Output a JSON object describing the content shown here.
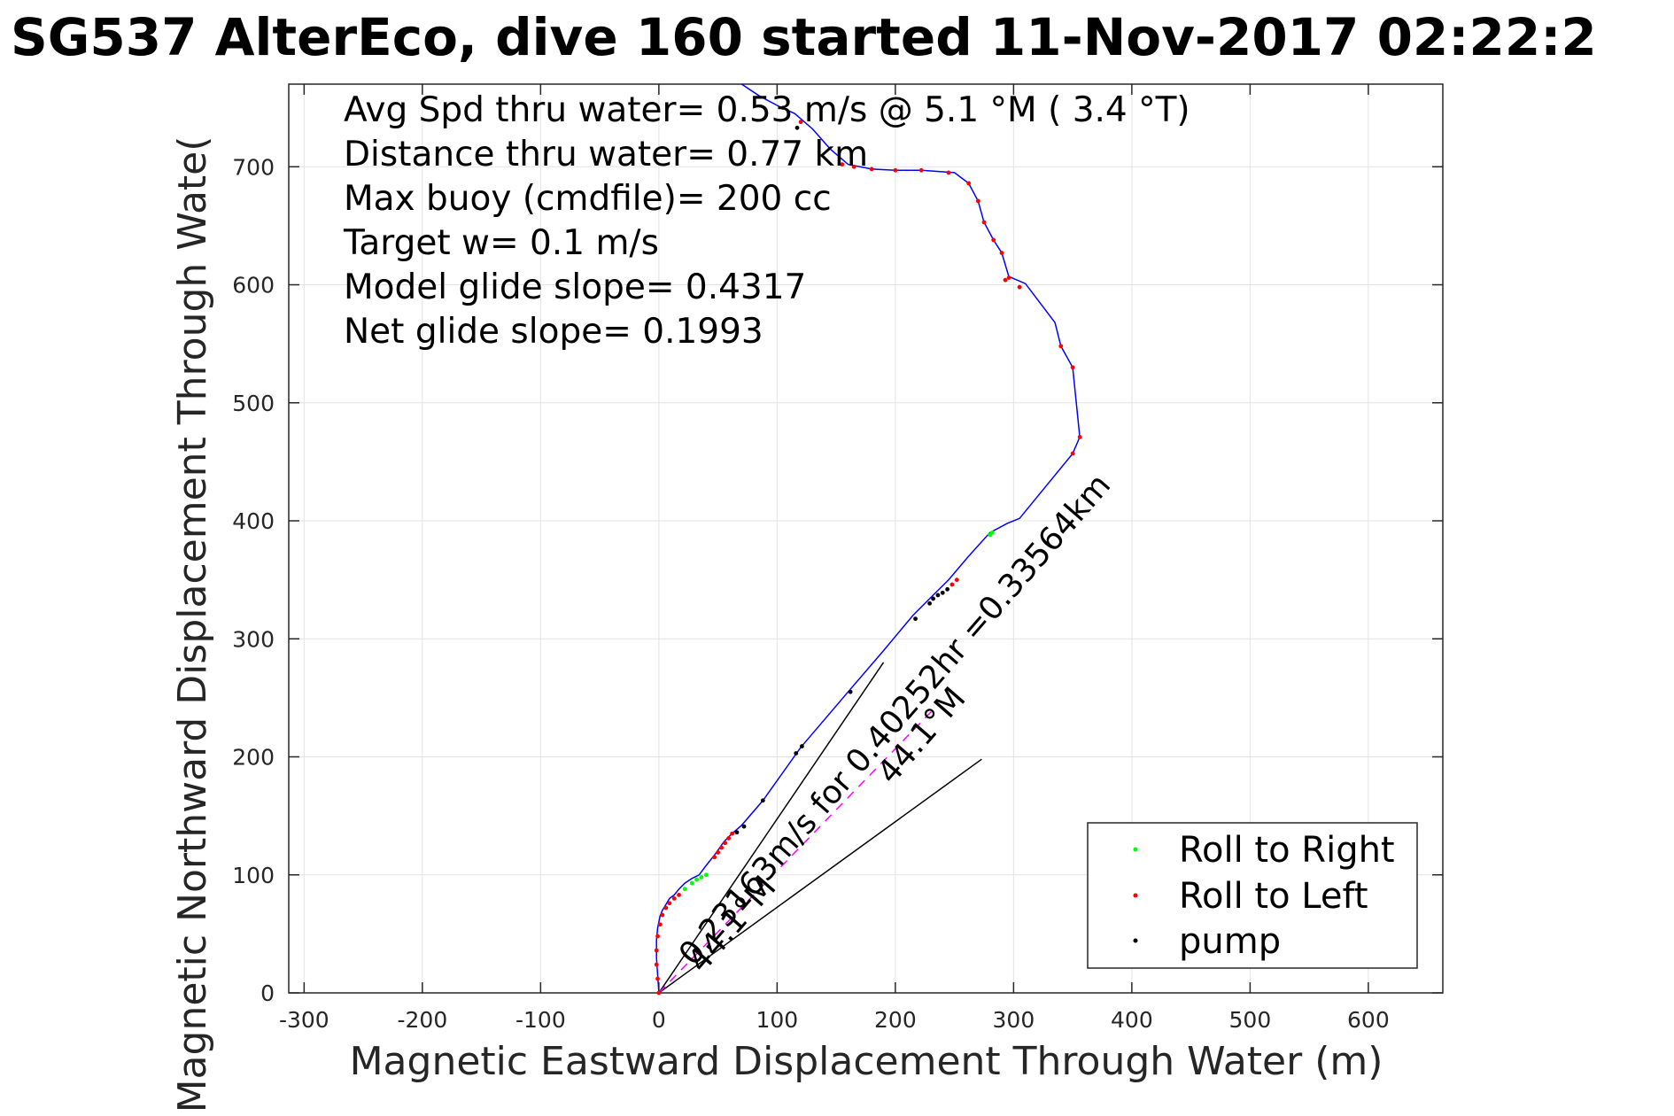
{
  "chart_data": {
    "type": "line",
    "title": "SG537 AlterEco, dive 160 started 11-Nov-2017 02:22:2",
    "xlabel": "Magnetic Eastward Displacement Through Water (m)",
    "ylabel": "Magnetic Northward Displacement Through Wate(",
    "xlim": [
      -313,
      663
    ],
    "ylim": [
      0,
      770
    ],
    "xticks": [
      -300,
      -200,
      -100,
      0,
      100,
      200,
      300,
      400,
      500,
      600
    ],
    "yticks": [
      0,
      100,
      200,
      300,
      400,
      500,
      600,
      700
    ],
    "grid": true,
    "legend_position": "bottom-right",
    "info_lines": [
      "Avg Spd thru water=  0.53 m/s @   5.1 °M (  3.4 °T)",
      "Distance thru water=  0.77 km",
      "Max buoy (cmdfile)= 200 cc",
      "Target w= 0.1 m/s",
      "Model glide slope= 0.4317",
      "Net glide slope= 0.1993"
    ],
    "annotations": {
      "current_text": "0.23163m/s for 0.40252hr =0.33564km",
      "heading_text_1": "44.1°M",
      "heading_text_2": "44.1°M"
    },
    "track": {
      "name": "track",
      "color": "#0000ff",
      "x": [
        0,
        -1,
        -2,
        -2,
        -1,
        1,
        3,
        6,
        9,
        13,
        17,
        22,
        28,
        34,
        40,
        48,
        55,
        62,
        70,
        88,
        120,
        160,
        190,
        215,
        233,
        245,
        262,
        280,
        295,
        305,
        350,
        356,
        350,
        340,
        335,
        310,
        296,
        290,
        283,
        275,
        270,
        262,
        250,
        222,
        200,
        180,
        160,
        145,
        130,
        115,
        100,
        85,
        70
      ],
      "y": [
        0,
        15,
        30,
        45,
        55,
        65,
        70,
        75,
        80,
        83,
        88,
        93,
        97,
        100,
        108,
        118,
        128,
        135,
        142,
        163,
        208,
        255,
        290,
        320,
        338,
        350,
        370,
        390,
        398,
        402,
        457,
        471,
        530,
        548,
        568,
        601,
        607,
        627,
        638,
        653,
        671,
        686,
        695,
        697,
        697,
        698,
        702,
        715,
        732,
        745,
        752,
        760,
        770
      ]
    },
    "series": [
      {
        "name": "Roll to Right",
        "color": "#00ff00",
        "x": [
          22,
          28,
          32,
          36,
          40,
          280,
          282
        ],
        "y": [
          88,
          93,
          96,
          98,
          100,
          388,
          390
        ]
      },
      {
        "name": "Roll to Left",
        "color": "#ff0000",
        "x": [
          0,
          -1,
          -2,
          -2,
          -1,
          1,
          3,
          6,
          9,
          13,
          17,
          47,
          50,
          53,
          56,
          59,
          62,
          248,
          252,
          350,
          356,
          350,
          340,
          305,
          296,
          293,
          290,
          283,
          275,
          270,
          262,
          245,
          222,
          200,
          180,
          165,
          155,
          120,
          105
        ],
        "y": [
          0,
          12,
          24,
          36,
          48,
          58,
          66,
          72,
          76,
          80,
          83,
          115,
          119,
          123,
          127,
          131,
          135,
          346,
          350,
          457,
          471,
          530,
          548,
          598,
          606,
          604,
          627,
          638,
          653,
          671,
          686,
          695,
          697,
          697,
          698,
          700,
          702,
          738,
          750
        ]
      },
      {
        "name": "pump",
        "color": "#000000",
        "x": [
          66,
          72,
          88,
          116,
          121,
          162,
          217,
          229,
          232,
          236,
          240,
          244,
          117
        ],
        "y": [
          136,
          141,
          163,
          203,
          209,
          255,
          317,
          330,
          334,
          337,
          339,
          342,
          733
        ]
      }
    ],
    "lines": [
      {
        "name": "heading-line-1",
        "x": [
          0,
          190
        ],
        "y": [
          0,
          280
        ]
      },
      {
        "name": "heading-line-2",
        "x": [
          0,
          273
        ],
        "y": [
          0,
          198
        ]
      },
      {
        "name": "current-line",
        "x": [
          0,
          233
        ],
        "y": [
          0,
          241
        ]
      }
    ]
  }
}
